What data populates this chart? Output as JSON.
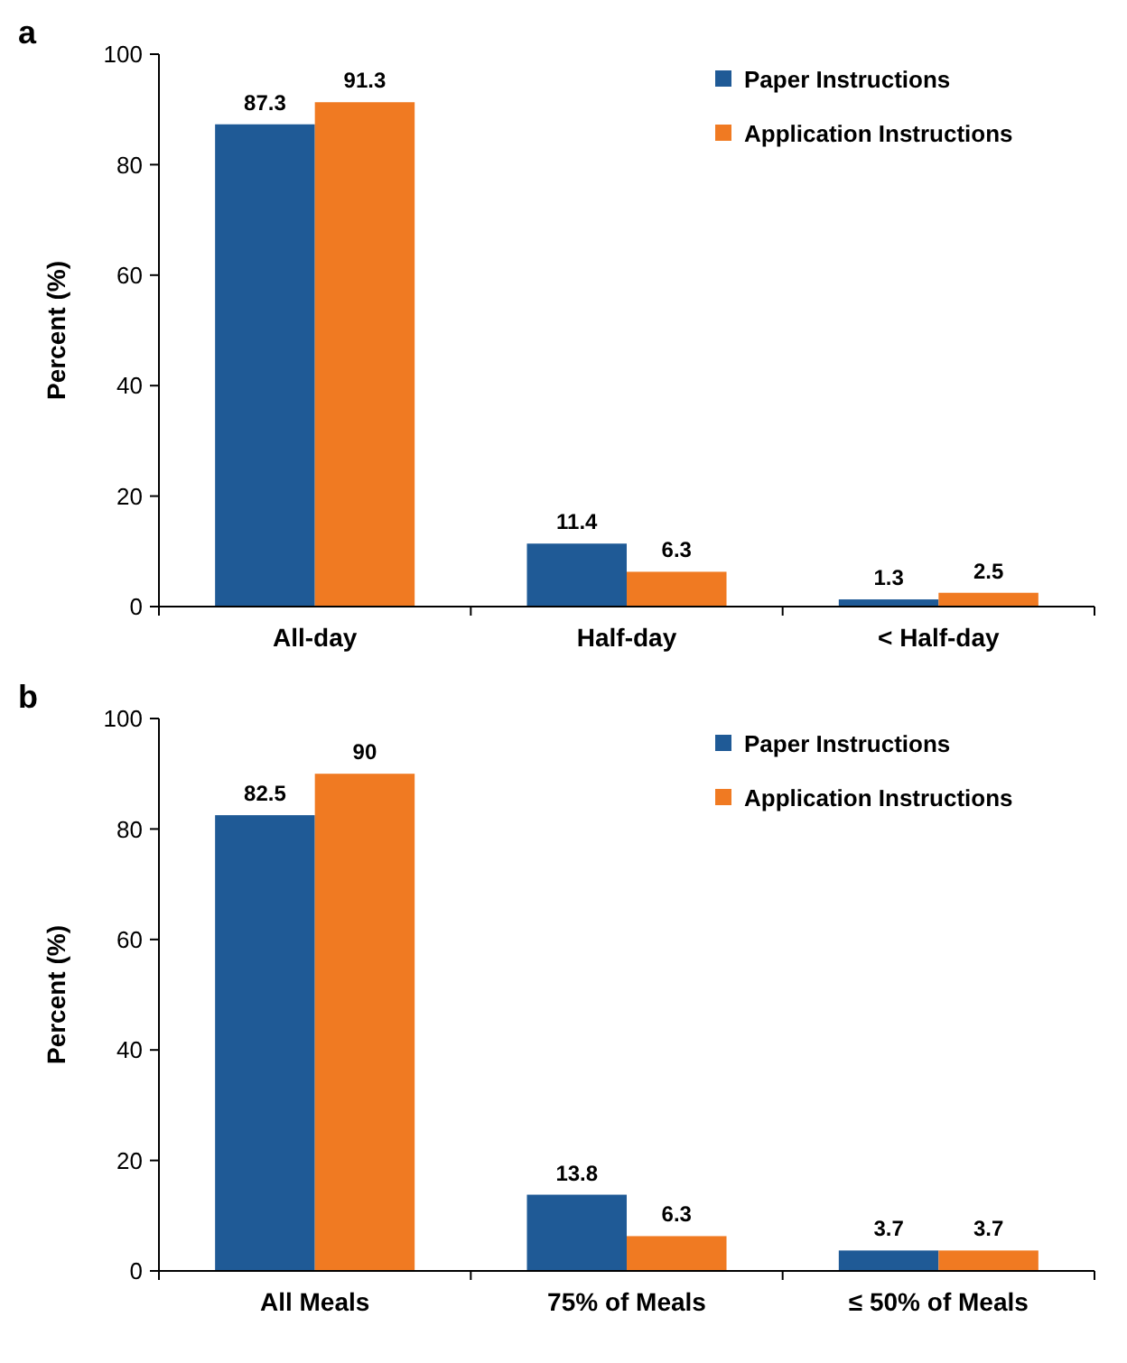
{
  "chart_data": [
    {
      "type": "bar",
      "title": "a",
      "ylabel": "Percent (%)",
      "categories": [
        "All-day",
        "Half-day",
        "< Half-day"
      ],
      "ylim": [
        0,
        100
      ],
      "yticks": [
        0,
        20,
        40,
        60,
        80,
        100
      ],
      "legend": "top right",
      "data_labels": true,
      "grid": false,
      "series": [
        {
          "name": "Paper Instructions",
          "color": "#1f5a96",
          "values": [
            87.3,
            11.4,
            1.3
          ]
        },
        {
          "name": "Application Instructions",
          "color": "#f07a22",
          "values": [
            91.3,
            6.3,
            2.5
          ]
        }
      ]
    },
    {
      "type": "bar",
      "title": "b",
      "ylabel": "Percent (%)",
      "categories": [
        "All Meals",
        "75% of Meals",
        "≤ 50% of Meals"
      ],
      "ylim": [
        0,
        100
      ],
      "yticks": [
        0,
        20,
        40,
        60,
        80,
        100
      ],
      "legend": "top right",
      "data_labels": true,
      "grid": false,
      "series": [
        {
          "name": "Paper Instructions",
          "color": "#1f5a96",
          "values": [
            82.5,
            13.8,
            3.7
          ]
        },
        {
          "name": "Application Instructions",
          "color": "#f07a22",
          "values": [
            90,
            6.3,
            3.7
          ]
        }
      ]
    }
  ]
}
